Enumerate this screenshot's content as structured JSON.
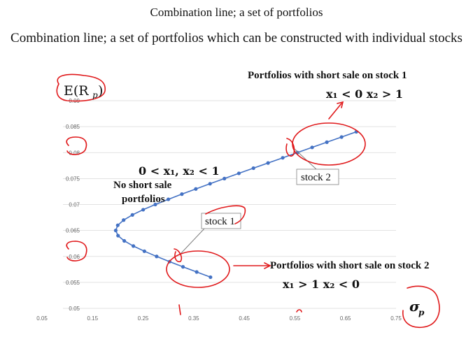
{
  "header": {
    "top_title": "Combination line; a set of  portfolios",
    "subtitle": "Combination line; a set of portfolios which can be constructed with individual stocks"
  },
  "annotations": {
    "y_axis_label": "E(R",
    "y_axis_sub": "p",
    "y_axis_close": ")",
    "x_axis_label": "σ",
    "x_axis_sub": "p",
    "short_stock1_title": "Portfolios with short sale on stock 1",
    "short_stock1_cond": "x₁ < 0   x₂ > 1",
    "no_short_cond": "0 < x₁, x₂ < 1",
    "no_short_line1": "No short sale",
    "no_short_line2": "portfolios",
    "stock1_label": "stock 1",
    "stock2_label": "stock 2",
    "short_stock2_title": "Portfolios with short sale on stock 2",
    "short_stock2_cond": "x₁ > 1   x₂ < 0"
  },
  "colors": {
    "series": "#4472c4",
    "pen": "#e0191b",
    "grid": "#d9d9d9",
    "callout_line": "#7f7f7f"
  },
  "chart_data": {
    "type": "scatter",
    "xlim": [
      0.05,
      0.75
    ],
    "ylim": [
      0.05,
      0.09
    ],
    "x_ticks": [
      "0.05",
      "0.15",
      "0.25",
      "0.35",
      "0.45",
      "0.55",
      "0.65",
      "0.75"
    ],
    "y_ticks": [
      "0.05",
      "0.055",
      "0.06",
      "0.065",
      "0.07",
      "0.075",
      "0.08",
      "0.085",
      "0.09"
    ],
    "grid": true,
    "series": [
      {
        "x": [
          0.3832,
          0.3559,
          0.3288,
          0.3023,
          0.2767,
          0.2525,
          0.2307,
          0.2127,
          0.2004,
          0.1958,
          0.1998,
          0.2114,
          0.2288,
          0.2501,
          0.2741,
          0.2998,
          0.3266,
          0.3542,
          0.3823,
          0.4107,
          0.4393,
          0.4681,
          0.497,
          0.526,
          0.555,
          0.5841,
          0.6132,
          0.6423,
          0.6715
        ],
        "y": [
          0.056,
          0.057,
          0.058,
          0.059,
          0.06,
          0.061,
          0.062,
          0.063,
          0.064,
          0.065,
          0.066,
          0.067,
          0.068,
          0.069,
          0.07,
          0.071,
          0.072,
          0.073,
          0.074,
          0.075,
          0.076,
          0.077,
          0.078,
          0.079,
          0.08,
          0.081,
          0.082,
          0.083,
          0.084
        ]
      }
    ]
  }
}
